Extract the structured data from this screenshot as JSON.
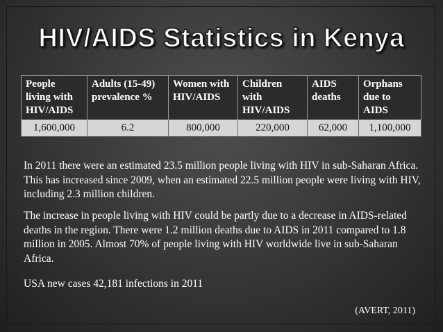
{
  "slide": {
    "title": "HIV/AIDS Statistics in Kenya",
    "table": {
      "headers": [
        "People living with HIV/AIDS",
        "Adults (15-49) prevalence %",
        "Women with HIV/AIDS",
        "Children with HIV/AIDS",
        "AIDS deaths",
        "Orphans due to AIDS"
      ],
      "values": [
        "1,600,000",
        "6.2",
        "800,000",
        "220,000",
        "62,000",
        "1,100,000"
      ]
    },
    "paragraph_1": "In 2011 there were an estimated 23.5 million people living with HIV in sub-Saharan Africa.  This has increased since 2009, when an estimated 22.5 million people were living with HIV, including 2.3 million children.",
    "paragraph_2": "The increase in people living with HIV could be partly due to a decrease in AIDS-related deaths in the region. There were 1.2 million deaths due to AIDS in 2011 compared to 1.8 million in 2005.  Almost 70% of people living with HIV worldwide live in sub-Saharan Africa.",
    "paragraph_3": "USA new cases 42,181 infections in 2011",
    "citation": "(AVERT, 2011)"
  }
}
